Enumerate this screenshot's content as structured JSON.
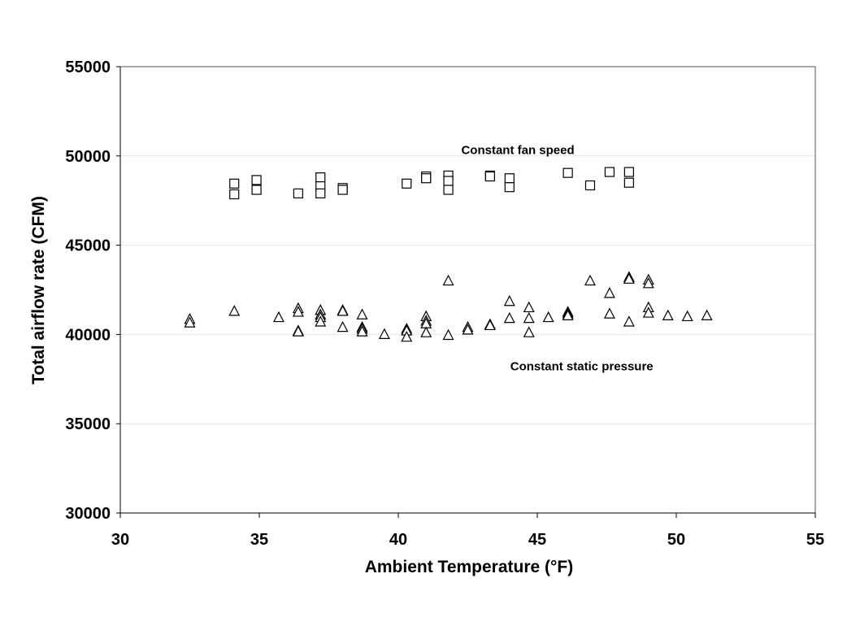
{
  "chart_data": {
    "type": "scatter",
    "xlabel": "Ambient Temperature (°F)",
    "ylabel": "Total airflow rate (CFM)",
    "xlim": [
      30,
      55
    ],
    "ylim": [
      30000,
      55000
    ],
    "xticks": [
      "30",
      "35",
      "40",
      "45",
      "50",
      "55"
    ],
    "yticks": [
      "30000",
      "35000",
      "40000",
      "45000",
      "50000",
      "55000"
    ],
    "grid": "horizontal",
    "annotations": [
      {
        "text": "Constant fan speed",
        "x": 44.3,
        "y": 50100
      },
      {
        "text": "Constant static pressure",
        "x": 46.6,
        "y": 38000
      }
    ],
    "series": [
      {
        "marker": "square",
        "points": [
          [
            34.1,
            48450
          ],
          [
            34.1,
            47850
          ],
          [
            34.9,
            48650
          ],
          [
            34.9,
            48100
          ],
          [
            36.4,
            47900
          ],
          [
            37.2,
            48800
          ],
          [
            37.2,
            48300
          ],
          [
            37.2,
            47900
          ],
          [
            38.0,
            48200
          ],
          [
            38.0,
            48100
          ],
          [
            40.3,
            48450
          ],
          [
            41.0,
            48850
          ],
          [
            41.0,
            48750
          ],
          [
            41.8,
            48900
          ],
          [
            41.8,
            48600
          ],
          [
            41.8,
            48100
          ],
          [
            43.3,
            48900
          ],
          [
            43.3,
            48850
          ],
          [
            44.0,
            48750
          ],
          [
            44.0,
            48250
          ],
          [
            46.1,
            49050
          ],
          [
            46.9,
            48350
          ],
          [
            47.6,
            49100
          ],
          [
            48.3,
            49100
          ],
          [
            48.3,
            48500
          ]
        ]
      },
      {
        "marker": "triangle",
        "points": [
          [
            32.5,
            40850
          ],
          [
            32.5,
            40650
          ],
          [
            34.1,
            41300
          ],
          [
            35.7,
            40950
          ],
          [
            36.4,
            41450
          ],
          [
            36.4,
            41250
          ],
          [
            36.4,
            40200
          ],
          [
            36.4,
            40150
          ],
          [
            37.2,
            41350
          ],
          [
            37.2,
            41100
          ],
          [
            37.2,
            40950
          ],
          [
            37.2,
            40700
          ],
          [
            38.0,
            41350
          ],
          [
            38.0,
            41300
          ],
          [
            38.0,
            40400
          ],
          [
            38.7,
            41100
          ],
          [
            38.7,
            40400
          ],
          [
            38.7,
            40300
          ],
          [
            38.7,
            40150
          ],
          [
            39.5,
            40000
          ],
          [
            40.3,
            40300
          ],
          [
            40.3,
            40200
          ],
          [
            40.3,
            39850
          ],
          [
            41.0,
            41000
          ],
          [
            41.0,
            40750
          ],
          [
            41.0,
            40600
          ],
          [
            41.0,
            40100
          ],
          [
            41.8,
            43000
          ],
          [
            41.8,
            39950
          ],
          [
            42.5,
            40400
          ],
          [
            42.5,
            40250
          ],
          [
            43.3,
            40550
          ],
          [
            43.3,
            40500
          ],
          [
            44.0,
            41850
          ],
          [
            44.0,
            40900
          ],
          [
            44.7,
            41500
          ],
          [
            44.7,
            40900
          ],
          [
            44.7,
            40100
          ],
          [
            45.4,
            40950
          ],
          [
            46.1,
            41250
          ],
          [
            46.1,
            41150
          ],
          [
            46.1,
            41050
          ],
          [
            46.9,
            43000
          ],
          [
            47.6,
            42300
          ],
          [
            47.6,
            41150
          ],
          [
            48.3,
            43200
          ],
          [
            48.3,
            43100
          ],
          [
            48.3,
            40700
          ],
          [
            49.0,
            43050
          ],
          [
            49.0,
            42850
          ],
          [
            49.0,
            41500
          ],
          [
            49.0,
            41200
          ],
          [
            49.7,
            41050
          ],
          [
            50.4,
            41000
          ],
          [
            51.1,
            41050
          ]
        ]
      }
    ]
  }
}
